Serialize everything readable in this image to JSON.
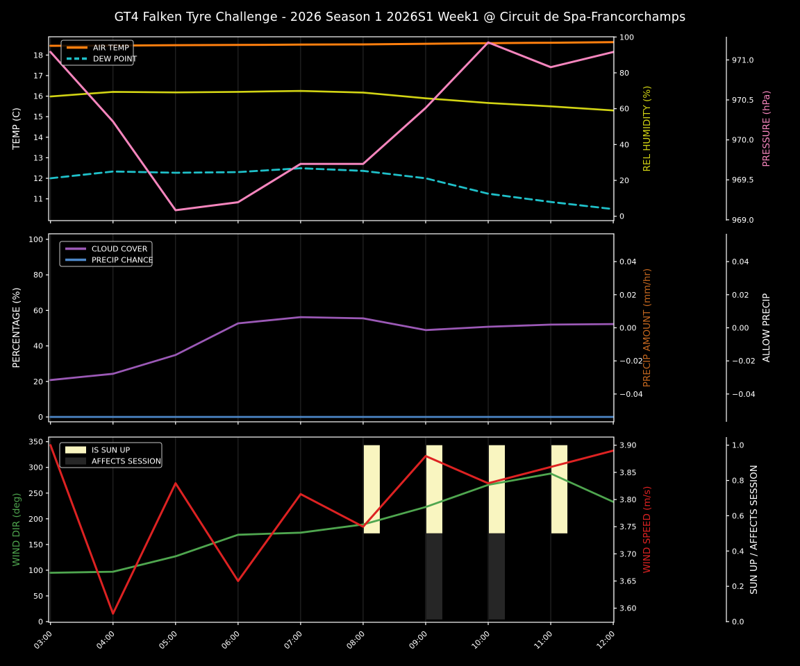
{
  "title": "GT4 Falken Tyre Challenge - 2026 Season 1 2026S1 Week1 @ Circuit de Spa-Francorchamps",
  "colors": {
    "background": "#000000",
    "foreground": "#ffffff",
    "grid": "#2d2d2d",
    "air_temp": "#ff7f0e",
    "dew_point": "#1fc0c9",
    "rel_humidity": "#d2d414",
    "pressure": "#f585bd",
    "cloud_cover": "#9b59b6",
    "precip_chance": "#4d87c7",
    "precip_amount_label": "#c4671f",
    "wind_dir": "#4fa64f",
    "wind_speed": "#dd2222",
    "sun_up_bar": "#f9f5c0",
    "affects_session_bar": "#262626"
  },
  "chart_data": [
    {
      "type": "line",
      "x_categories": [
        "03:00",
        "04:00",
        "05:00",
        "06:00",
        "07:00",
        "08:00",
        "09:00",
        "10:00",
        "11:00",
        "12:00"
      ],
      "x_hours": [
        3,
        4,
        5,
        6,
        7,
        8,
        9,
        10,
        11,
        12
      ],
      "axes": {
        "x": {
          "min": 2.97,
          "max": 12.01,
          "show_tick_labels": false
        },
        "left": {
          "label": "TEMP (C)",
          "label_color": "#ffffff",
          "min": 9.94,
          "max": 18.89,
          "ticks": [
            18,
            17,
            16,
            15,
            14,
            13,
            12,
            11
          ],
          "tick_labels": [
            "18",
            "17",
            "16",
            "15",
            "14",
            "13",
            "12",
            "11"
          ]
        },
        "right": {
          "label": "REL HUMIDITY (%)",
          "label_color": "#d2d414",
          "min": -2.44,
          "max": 100.12,
          "ticks": [
            100,
            80,
            60,
            40,
            20,
            0
          ],
          "tick_labels": [
            "100",
            "80",
            "60",
            "40",
            "20",
            "0"
          ]
        },
        "far_right": {
          "label": "PRESSURE (hPa)",
          "label_color": "#f585bd",
          "min": 968.99,
          "max": 971.29,
          "ticks": [
            971.0,
            970.5,
            970.0,
            969.5,
            969.0
          ],
          "tick_labels": [
            "971.0",
            "970.5",
            "970.0",
            "969.5",
            "969.0"
          ]
        }
      },
      "series": [
        {
          "name": "AIR TEMP",
          "axis": "left",
          "color": "#ff7f0e",
          "width": 3,
          "dash": null,
          "values": [
            18.45,
            18.46,
            18.48,
            18.49,
            18.51,
            18.52,
            18.55,
            18.58,
            18.6,
            18.63
          ]
        },
        {
          "name": "DEW POINT",
          "axis": "left",
          "color": "#1fc0c9",
          "width": 2.8,
          "dash": "10 6",
          "values": [
            12.0,
            12.33,
            12.27,
            12.3,
            12.49,
            12.36,
            12.0,
            11.25,
            10.85,
            10.5
          ]
        },
        {
          "name": "REL HUMIDITY",
          "axis": "right",
          "color": "#d2d414",
          "width": 2.6,
          "dash": null,
          "values": [
            66.8,
            69.4,
            69.1,
            69.4,
            69.9,
            69.0,
            65.8,
            63.2,
            61.3,
            59.0
          ]
        },
        {
          "name": "PRESSURE",
          "axis": "far_right",
          "color": "#f585bd",
          "width": 3,
          "dash": null,
          "values": [
            971.1,
            970.23,
            969.12,
            969.22,
            969.7,
            969.7,
            970.4,
            971.22,
            970.91,
            971.1
          ]
        }
      ],
      "legend": [
        {
          "label": "AIR TEMP",
          "color": "#ff7f0e",
          "style": "line"
        },
        {
          "label": "DEW POINT",
          "color": "#1fc0c9",
          "style": "dashed-line"
        }
      ]
    },
    {
      "type": "line",
      "x_categories": [
        "03:00",
        "04:00",
        "05:00",
        "06:00",
        "07:00",
        "08:00",
        "09:00",
        "10:00",
        "11:00",
        "12:00"
      ],
      "x_hours": [
        3,
        4,
        5,
        6,
        7,
        8,
        9,
        10,
        11,
        12
      ],
      "axes": {
        "x": {
          "min": 2.97,
          "max": 12.01,
          "show_tick_labels": false
        },
        "left": {
          "label": "PERCENTAGE (%)",
          "label_color": "#ffffff",
          "min": -2.73,
          "max": 103.12,
          "ticks": [
            100,
            80,
            60,
            40,
            20,
            0
          ],
          "tick_labels": [
            "100",
            "80",
            "60",
            "40",
            "20",
            "0"
          ]
        },
        "right": {
          "label": "PRECIP AMOUNT (mm/hr)",
          "label_color": "#c4671f",
          "min": -0.0568,
          "max": 0.0568,
          "ticks": [
            0.04,
            0.02,
            0.0,
            -0.02,
            -0.04
          ],
          "tick_labels": [
            "0.04",
            "0.02",
            "0.00",
            "−0.02",
            "−0.04"
          ]
        },
        "far_right": {
          "label": "ALLOW PRECIP",
          "label_color": "#ffffff",
          "min": -0.0568,
          "max": 0.0568,
          "ticks": [
            0.04,
            0.02,
            0.0,
            -0.02,
            -0.04
          ],
          "tick_labels": [
            "0.04",
            "0.02",
            "0.00",
            "−0.02",
            "−0.04"
          ]
        }
      },
      "series": [
        {
          "name": "CLOUD COVER",
          "axis": "left",
          "color": "#9b59b6",
          "width": 2.8,
          "dash": null,
          "values": [
            20.8,
            24.3,
            34.9,
            52.7,
            56.2,
            55.5,
            48.9,
            50.8,
            52.0,
            52.3
          ]
        },
        {
          "name": "PRECIP CHANCE",
          "axis": "left",
          "color": "#4d87c7",
          "width": 2.8,
          "dash": null,
          "values": [
            0,
            0,
            0,
            0,
            0,
            0,
            0,
            0,
            0,
            0
          ]
        }
      ],
      "legend": [
        {
          "label": "CLOUD COVER",
          "color": "#9b59b6",
          "style": "line"
        },
        {
          "label": "PRECIP CHANCE",
          "color": "#4d87c7",
          "style": "line"
        }
      ]
    },
    {
      "type": "line-bar",
      "x_categories": [
        "03:00",
        "04:00",
        "05:00",
        "06:00",
        "07:00",
        "08:00",
        "09:00",
        "10:00",
        "11:00",
        "12:00"
      ],
      "x_hours": [
        3,
        4,
        5,
        6,
        7,
        8,
        9,
        10,
        11,
        12
      ],
      "axes": {
        "x": {
          "min": 2.97,
          "max": 12.01,
          "show_tick_labels": true
        },
        "left": {
          "label": "WIND DIR (deg)",
          "label_color": "#4fa64f",
          "min": -1.35,
          "max": 359.0,
          "ticks": [
            350,
            300,
            250,
            200,
            150,
            100,
            50,
            0
          ],
          "tick_labels": [
            "350",
            "300",
            "250",
            "200",
            "150",
            "100",
            "50",
            "0"
          ]
        },
        "right": {
          "label": "WIND SPEED (m/s)",
          "label_color": "#dd2222",
          "min": 3.574,
          "max": 3.915,
          "ticks": [
            3.9,
            3.85,
            3.8,
            3.75,
            3.7,
            3.65,
            3.6
          ],
          "tick_labels": [
            "3.90",
            "3.85",
            "3.80",
            "3.75",
            "3.70",
            "3.65",
            "3.60"
          ]
        },
        "far_right": {
          "label": "SUN UP / AFFECTS SESSION",
          "label_color": "#ffffff",
          "min": -0.004,
          "max": 1.046,
          "ticks": [
            1.0,
            0.8,
            0.6,
            0.4,
            0.2,
            0.0
          ],
          "tick_labels": [
            "1.0",
            "0.8",
            "0.6",
            "0.4",
            "0.2",
            "0.0"
          ]
        }
      },
      "series": [
        {
          "name": "WIND DIR",
          "axis": "left",
          "color": "#4fa64f",
          "width": 2.8,
          "dash": null,
          "values": [
            95,
            97,
            127,
            169,
            173,
            189,
            223,
            266,
            288,
            233
          ]
        },
        {
          "name": "WIND SPEED",
          "axis": "right",
          "color": "#dd2222",
          "width": 3,
          "dash": null,
          "values": [
            3.9,
            3.59,
            3.83,
            3.65,
            3.81,
            3.75,
            3.88,
            3.83,
            3.86,
            3.89
          ]
        }
      ],
      "bars": [
        {
          "name": "IS SUN UP",
          "axis": "far_right",
          "color": "#f9f5c0",
          "band": [
            0.5,
            1.0
          ],
          "values": [
            0,
            0,
            0,
            0,
            0,
            1,
            1,
            1,
            1,
            0
          ]
        },
        {
          "name": "AFFECTS SESSION",
          "axis": "far_right",
          "color": "#262626",
          "band": [
            0.012,
            0.5
          ],
          "values": [
            0,
            0,
            0,
            0,
            0,
            0,
            1,
            1,
            0,
            0
          ]
        }
      ],
      "legend": [
        {
          "label": "IS SUN UP",
          "color": "#f9f5c0",
          "style": "patch"
        },
        {
          "label": "AFFECTS SESSION",
          "color": "#262626",
          "style": "patch"
        }
      ]
    }
  ]
}
